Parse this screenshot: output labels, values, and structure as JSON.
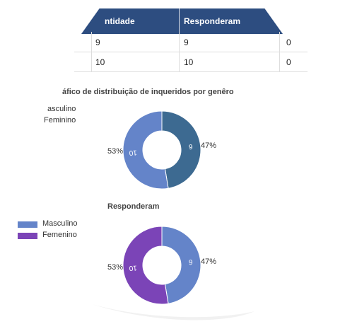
{
  "table": {
    "headers": [
      "ntidade",
      "Responderam"
    ],
    "rows": [
      [
        "9",
        "9",
        "0"
      ],
      [
        "10",
        "10",
        "0"
      ]
    ]
  },
  "chart_data": [
    {
      "type": "pie",
      "title": "áfico de distribuição de inqueridos por genêro",
      "legend": [
        "asculino",
        "Feminino"
      ],
      "legend_placement": "top-left",
      "slices": [
        {
          "label": "Masculino",
          "value": 9,
          "percent_label": "47%",
          "color": "#3d6a91"
        },
        {
          "label": "Feminino",
          "value": 10,
          "percent_label": "53%",
          "color": "#6484c9"
        }
      ]
    },
    {
      "type": "pie",
      "title": "Responderam",
      "legend": [
        "Masculino",
        "Femenino"
      ],
      "legend_colors": [
        "#6484c9",
        "#7b44b7"
      ],
      "legend_placement": "left",
      "slices": [
        {
          "label": "Masculino",
          "value": 9,
          "percent_label": "47%",
          "color": "#6484c9"
        },
        {
          "label": "Femenino",
          "value": 10,
          "percent_label": "53%",
          "color": "#7b44b7"
        }
      ]
    }
  ]
}
